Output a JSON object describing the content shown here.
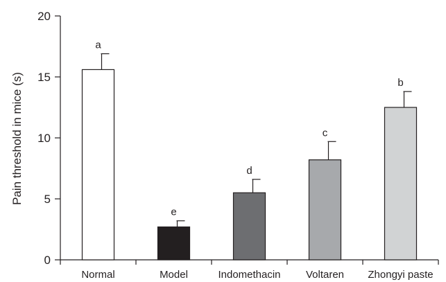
{
  "chart_data": {
    "type": "bar",
    "title": "",
    "xlabel": "",
    "ylabel": "Pain threshold in mice (s)",
    "ylim": [
      0,
      20
    ],
    "yticks": [
      0,
      5,
      10,
      15,
      20
    ],
    "grid": false,
    "categories": [
      "Normal",
      "Model",
      "Indomethacin",
      "Voltaren",
      "Zhongyi paste"
    ],
    "values": [
      15.6,
      2.7,
      5.5,
      8.2,
      12.5
    ],
    "errors": [
      1.3,
      0.5,
      1.1,
      1.5,
      1.3
    ],
    "significance": [
      "a",
      "e",
      "d",
      "c",
      "b"
    ],
    "colors": [
      "#ffffff",
      "#231f20",
      "#6d6e71",
      "#a7a9ac",
      "#d1d3d4"
    ]
  }
}
